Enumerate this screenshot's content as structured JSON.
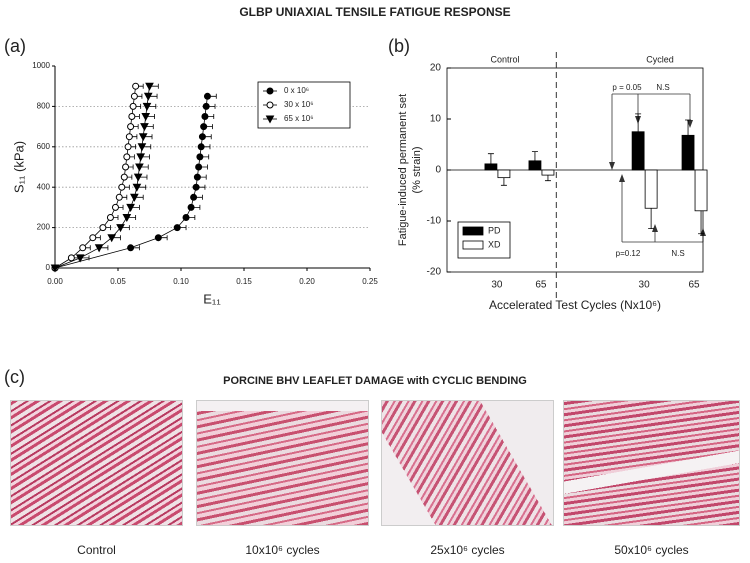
{
  "header": {
    "title": "GLBP UNIAXIAL TENSILE FATIGUE RESPONSE"
  },
  "panel_labels": [
    "(a)",
    "(b)",
    "(c)"
  ],
  "chart_data": [
    {
      "type": "line",
      "xlabel": "E₁₁",
      "ylabel": "S₁₁ (kPa)",
      "xlim": [
        0,
        0.25
      ],
      "xticks": [
        {
          "value": 0,
          "label": "0.00"
        },
        {
          "value": 0.05,
          "label": "0.05"
        },
        {
          "value": 0.1,
          "label": "0.10"
        },
        {
          "value": 0.15,
          "label": "0.15"
        },
        {
          "value": 0.2,
          "label": "0.20"
        },
        {
          "value": 0.25,
          "label": "0.25"
        }
      ],
      "ylim": [
        0,
        1000
      ],
      "yticks": [
        0,
        200,
        400,
        600,
        800,
        1000
      ],
      "grid": true,
      "legend": "upper right",
      "series": [
        {
          "name": "0 x 10⁶",
          "color": "#000000",
          "marker": "circle",
          "marker_fill": "#000000",
          "x": [
            0,
            0.06,
            0.082,
            0.097,
            0.104,
            0.108,
            0.11,
            0.112,
            0.113,
            0.114,
            0.115,
            0.116,
            0.117,
            0.118,
            0.119,
            0.12,
            0.121
          ],
          "values": [
            0,
            100,
            150,
            200,
            250,
            300,
            350,
            400,
            450,
            500,
            550,
            600,
            650,
            700,
            750,
            800,
            850
          ],
          "xerr": 0.007
        },
        {
          "name": "30 x 10⁶",
          "color": "#000000",
          "marker": "circle",
          "marker_fill": "#ffffff",
          "x": [
            0,
            0.013,
            0.022,
            0.03,
            0.038,
            0.044,
            0.048,
            0.051,
            0.053,
            0.055,
            0.056,
            0.057,
            0.058,
            0.059,
            0.06,
            0.061,
            0.062,
            0.063,
            0.064
          ],
          "values": [
            0,
            50,
            100,
            150,
            200,
            250,
            300,
            350,
            400,
            450,
            500,
            550,
            600,
            650,
            700,
            750,
            800,
            850,
            900
          ],
          "xerr": 0.006
        },
        {
          "name": "65 x 10⁶",
          "color": "#000000",
          "marker": "triangle-down",
          "marker_fill": "#000000",
          "x": [
            0,
            0.02,
            0.035,
            0.045,
            0.052,
            0.057,
            0.06,
            0.063,
            0.065,
            0.066,
            0.067,
            0.068,
            0.069,
            0.07,
            0.071,
            0.072,
            0.073,
            0.074,
            0.075
          ],
          "values": [
            0,
            50,
            100,
            150,
            200,
            250,
            300,
            350,
            400,
            450,
            500,
            550,
            600,
            650,
            700,
            750,
            800,
            850,
            900
          ],
          "xerr": 0.007
        }
      ]
    },
    {
      "type": "bar",
      "ylabel": [
        "Fatigue-induced permanent set",
        "(% strain)"
      ],
      "xlabel": "Accelerated Test Cycles (Nx10⁶)",
      "groups": [
        "Control",
        "Cycled"
      ],
      "categories": [
        "30",
        "65",
        "30",
        "65"
      ],
      "ylim": [
        -20,
        20
      ],
      "yticks": [
        -20,
        -10,
        0,
        10,
        20
      ],
      "legend": "lower left",
      "series": [
        {
          "name": "PD",
          "color": "#000000",
          "values": [
            1.2,
            1.8,
            7.5,
            6.8
          ],
          "errors": [
            2,
            1.8,
            3.5,
            3
          ]
        },
        {
          "name": "XD",
          "color": "#ffffff",
          "values": [
            -1.5,
            -1,
            -7.5,
            -8
          ],
          "errors": [
            1.5,
            1.1,
            4,
            4.5
          ]
        }
      ],
      "annotations": [
        "p = 0.05",
        "N.S",
        "p=0.12",
        "N.S"
      ]
    }
  ],
  "histology": {
    "title": "PORCINE BHV LEAFLET DAMAGE with CYCLIC BENDING",
    "panels": [
      {
        "caption": "Control"
      },
      {
        "caption": "10x10⁶ cycles"
      },
      {
        "caption": "25x10⁶ cycles"
      },
      {
        "caption": "50x10⁶ cycles"
      }
    ]
  }
}
